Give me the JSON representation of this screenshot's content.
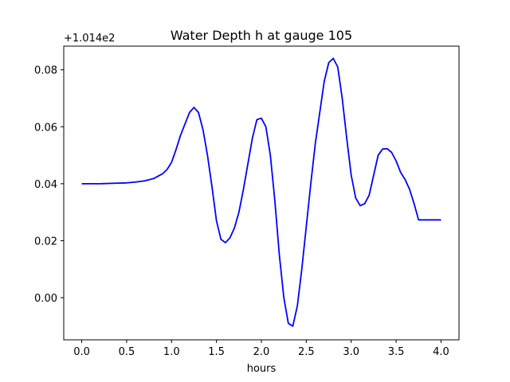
{
  "chart_data": {
    "type": "line",
    "title": "Water Depth h at gauge 105",
    "xlabel": "hours",
    "ylabel": "",
    "y_offset_label": "+1.014e2",
    "xlim": [
      -0.2,
      4.2
    ],
    "ylim": [
      -0.0148,
      0.0883
    ],
    "x_ticks": [
      0.0,
      0.5,
      1.0,
      1.5,
      2.0,
      2.5,
      3.0,
      3.5,
      4.0
    ],
    "x_tick_labels": [
      "0.0",
      "0.5",
      "1.0",
      "1.5",
      "2.0",
      "2.5",
      "3.0",
      "3.5",
      "4.0"
    ],
    "y_ticks": [
      0.0,
      0.02,
      0.04,
      0.06,
      0.08
    ],
    "y_tick_labels": [
      "0.00",
      "0.02",
      "0.04",
      "0.06",
      "0.08"
    ],
    "grid": false,
    "series": [
      {
        "color": "#0000ff",
        "x": [
          0.0,
          0.2,
          0.4,
          0.5,
          0.6,
          0.7,
          0.8,
          0.9,
          0.95,
          1.0,
          1.05,
          1.1,
          1.15,
          1.2,
          1.25,
          1.3,
          1.35,
          1.4,
          1.45,
          1.5,
          1.55,
          1.6,
          1.65,
          1.7,
          1.75,
          1.8,
          1.85,
          1.9,
          1.95,
          2.0,
          2.05,
          2.1,
          2.15,
          2.2,
          2.25,
          2.3,
          2.35,
          2.4,
          2.45,
          2.5,
          2.55,
          2.6,
          2.65,
          2.7,
          2.75,
          2.8,
          2.85,
          2.9,
          2.95,
          3.0,
          3.05,
          3.1,
          3.15,
          3.2,
          3.25,
          3.3,
          3.35,
          3.4,
          3.45,
          3.5,
          3.55,
          3.6,
          3.65,
          3.7,
          3.75,
          3.8,
          3.85,
          3.9,
          3.95,
          4.0
        ],
        "y": [
          0.04,
          0.04,
          0.0402,
          0.0403,
          0.0406,
          0.041,
          0.0418,
          0.0435,
          0.045,
          0.0475,
          0.052,
          0.057,
          0.061,
          0.065,
          0.0668,
          0.065,
          0.059,
          0.05,
          0.039,
          0.027,
          0.0205,
          0.0193,
          0.021,
          0.0245,
          0.03,
          0.038,
          0.047,
          0.056,
          0.0625,
          0.063,
          0.06,
          0.05,
          0.034,
          0.015,
          0.0,
          -0.009,
          -0.01,
          -0.003,
          0.01,
          0.025,
          0.04,
          0.054,
          0.065,
          0.076,
          0.0825,
          0.084,
          0.081,
          0.07,
          0.056,
          0.043,
          0.035,
          0.0323,
          0.033,
          0.036,
          0.043,
          0.05,
          0.0522,
          0.0523,
          0.051,
          0.048,
          0.044,
          0.0415,
          0.038,
          0.033,
          0.0273,
          0.0273,
          0.0273,
          0.0273,
          0.0273,
          0.0273
        ]
      }
    ]
  }
}
